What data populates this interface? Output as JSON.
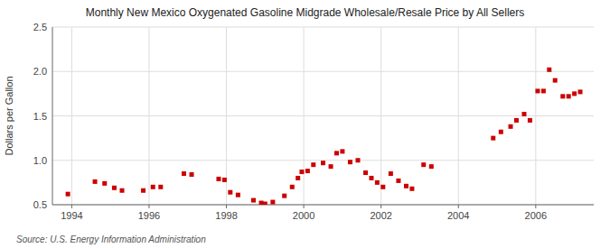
{
  "chart_data": {
    "type": "scatter",
    "title": "Monthly New Mexico Oxygenated Gasoline Midgrade Wholesale/Resale Price by All Sellers",
    "ylabel": "Dollars per Gallon",
    "annotations": [
      "Source: U.S. Energy Information Administration"
    ],
    "color": "#cc0000",
    "marker": "square",
    "grid": true,
    "xlim": [
      1993.5,
      2007.5
    ],
    "xticks": [
      1994,
      1996,
      1998,
      2000,
      2002,
      2004,
      2006
    ],
    "ylim": [
      0.5,
      2.5
    ],
    "yticks": [
      0.5,
      {
        "value": 1.0,
        "label": "1.0"
      },
      1.5,
      {
        "value": 2.0,
        "label": "2.0"
      },
      2.5
    ],
    "x": [
      1993.9,
      1994.6,
      1994.85,
      1995.1,
      1995.3,
      1995.85,
      1996.1,
      1996.3,
      1996.9,
      1997.1,
      1997.8,
      1997.95,
      1998.1,
      1998.3,
      1998.7,
      1998.9,
      1999.0,
      1999.2,
      1999.5,
      1999.7,
      1999.85,
      1999.95,
      2000.1,
      2000.25,
      2000.5,
      2000.7,
      2000.85,
      2001.0,
      2001.2,
      2001.4,
      2001.6,
      2001.75,
      2001.9,
      2002.05,
      2002.25,
      2002.45,
      2002.65,
      2002.8,
      2003.1,
      2003.3,
      2004.9,
      2005.1,
      2005.35,
      2005.5,
      2005.7,
      2005.85,
      2006.05,
      2006.2,
      2006.35,
      2006.5,
      2006.7,
      2006.85,
      2007.0,
      2007.15
    ],
    "values": [
      0.62,
      0.76,
      0.74,
      0.69,
      0.66,
      0.66,
      0.7,
      0.7,
      0.85,
      0.84,
      0.79,
      0.78,
      0.64,
      0.61,
      0.55,
      0.52,
      0.51,
      0.53,
      0.6,
      0.7,
      0.8,
      0.87,
      0.88,
      0.95,
      0.97,
      0.93,
      1.08,
      1.1,
      0.98,
      1.0,
      0.86,
      0.8,
      0.75,
      0.7,
      0.85,
      0.77,
      0.71,
      0.68,
      0.95,
      0.93,
      1.25,
      1.32,
      1.38,
      1.45,
      1.52,
      1.45,
      1.78,
      1.78,
      2.02,
      1.9,
      1.72,
      1.72,
      1.75,
      1.77
    ]
  }
}
